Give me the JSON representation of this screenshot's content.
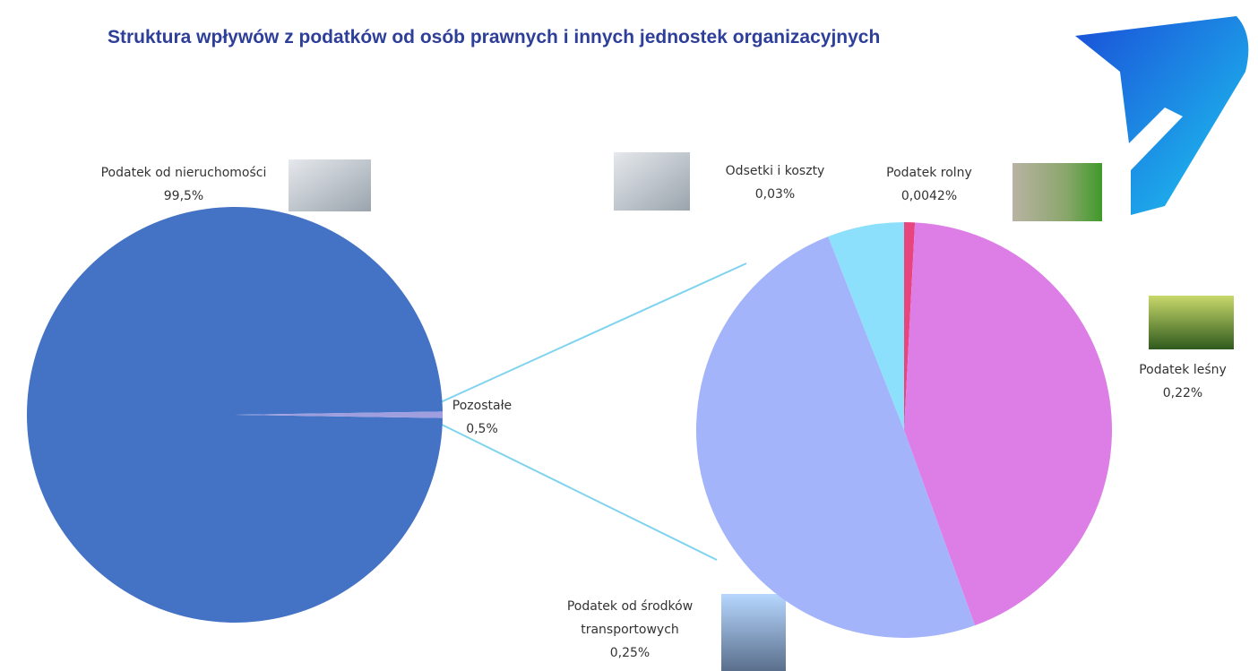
{
  "chart_data": [
    {
      "type": "pie",
      "title": "Struktura wpływów z podatków od osób prawnych i innych jednostek organizacyjnych",
      "labels": [
        "Podatek od nieruchomości",
        "Pozostałe"
      ],
      "values": [
        99.5,
        0.5
      ],
      "value_labels": [
        "99,5%",
        "0,5%"
      ],
      "colors": [
        "#4472c4",
        "#9f9fe0"
      ]
    },
    {
      "type": "pie",
      "labels": [
        "Podatek rolny",
        "Podatek leśny",
        "Podatek od środków transportowych",
        "Odsetki i koszty"
      ],
      "values": [
        0.0042,
        0.22,
        0.25,
        0.03
      ],
      "value_labels": [
        "0,0042%",
        "0,22%",
        "0,25%",
        "0,03%"
      ],
      "colors": [
        "#e8457f",
        "#dd7ee6",
        "#a4b4fb",
        "#8de0fb"
      ]
    }
  ]
}
